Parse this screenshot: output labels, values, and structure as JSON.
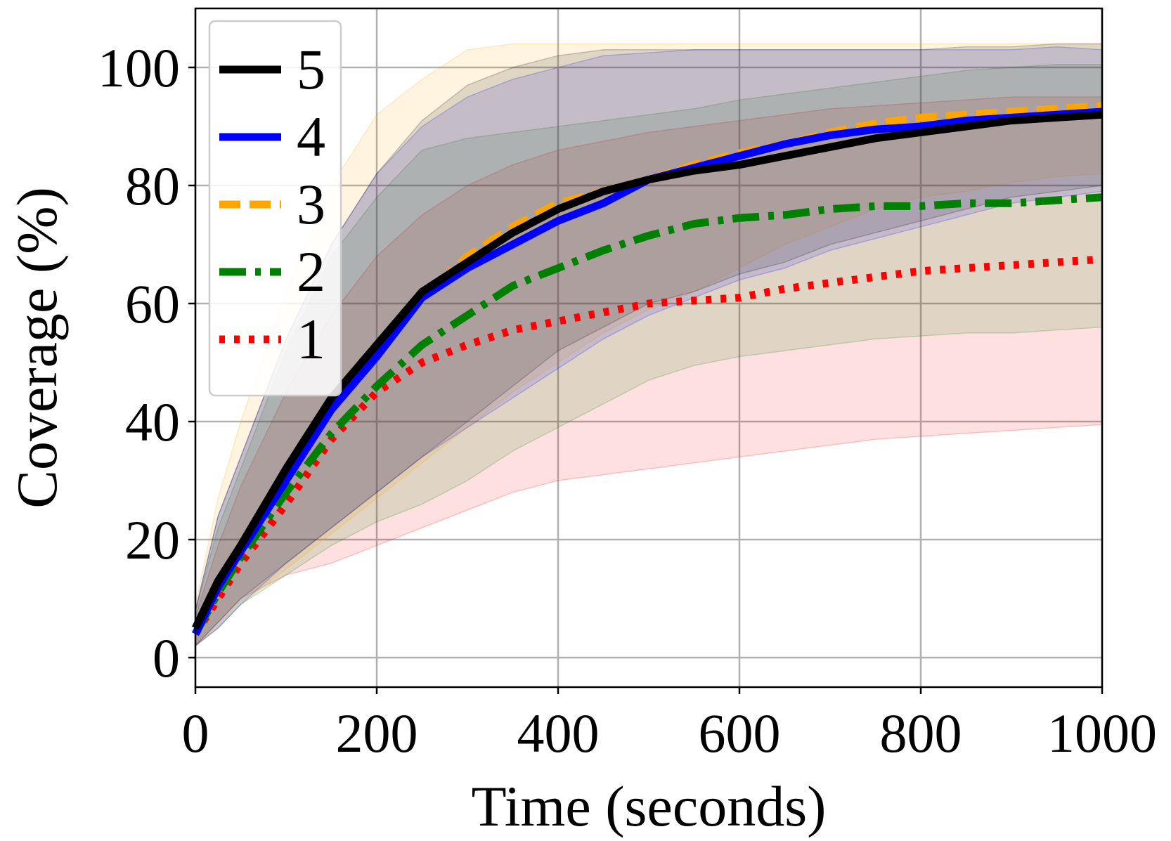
{
  "chart_data": {
    "type": "line",
    "title": "",
    "xlabel": "Time (seconds)",
    "ylabel": "Coverage (%)",
    "xlim": [
      0,
      1000
    ],
    "ylim": [
      -5,
      110
    ],
    "xticks": [
      "0",
      "200",
      "400",
      "600",
      "800",
      "1000"
    ],
    "yticks": [
      "0",
      "20",
      "40",
      "60",
      "80",
      "100"
    ],
    "grid": true,
    "legend_position": "top-left",
    "x": [
      0,
      25,
      50,
      100,
      150,
      200,
      250,
      300,
      350,
      400,
      450,
      500,
      550,
      600,
      650,
      700,
      750,
      800,
      850,
      900,
      950,
      1000
    ],
    "series": [
      {
        "name": "5",
        "color": "#000000",
        "style": "solid",
        "values": [
          5,
          13,
          19,
          32,
          44,
          53,
          62,
          67,
          72,
          76,
          79,
          81,
          82.5,
          83.5,
          85,
          86.5,
          88,
          89,
          90,
          91,
          91.5,
          92
        ],
        "band_upper": [
          8,
          24,
          34,
          54,
          70,
          82,
          91,
          97,
          100,
          102,
          103,
          103,
          103,
          103,
          103,
          103,
          103,
          103,
          103.5,
          103.5,
          104,
          104
        ],
        "band_lower": [
          2,
          6,
          10,
          16,
          22,
          28,
          34,
          40,
          46,
          52,
          56,
          60,
          62,
          65,
          67,
          70,
          72,
          74,
          76,
          78,
          79,
          80
        ]
      },
      {
        "name": "4",
        "color": "#0000ff",
        "style": "solid",
        "values": [
          4,
          12,
          18,
          30,
          42,
          51,
          61,
          66,
          70,
          74,
          77,
          81,
          83,
          85,
          87,
          88.5,
          89.5,
          90,
          91,
          91.5,
          92,
          92.5
        ],
        "band_upper": [
          8,
          24,
          34,
          54,
          70,
          82,
          90,
          95,
          98,
          100,
          102,
          102.5,
          103,
          103,
          103,
          103,
          103,
          103,
          103,
          103,
          103.5,
          103
        ],
        "band_lower": [
          2,
          5,
          9,
          16,
          22,
          28,
          34,
          39,
          44,
          49,
          54,
          58,
          61,
          64,
          66,
          69,
          71,
          73,
          75,
          77,
          78,
          79
        ]
      },
      {
        "name": "3",
        "color": "#ffa500",
        "style": "dashed",
        "values": [
          5,
          12,
          18,
          31,
          43,
          52,
          61,
          68,
          73,
          77,
          79,
          81,
          83.5,
          85.5,
          87,
          89,
          90.5,
          91.5,
          92,
          92.5,
          93,
          93.5
        ],
        "band_upper": [
          9,
          27,
          40,
          62,
          80,
          92,
          98,
          103,
          104,
          104,
          104,
          104,
          104,
          104,
          104,
          104,
          104,
          104,
          104,
          104,
          104,
          104
        ],
        "band_lower": [
          2,
          5,
          9,
          15,
          21,
          27,
          33,
          39,
          45,
          50,
          55,
          59,
          62,
          66,
          70,
          73,
          76,
          78,
          79,
          80.5,
          81.5,
          82
        ]
      },
      {
        "name": "2",
        "color": "#008000",
        "style": "dashdot",
        "values": [
          4,
          11,
          17,
          28,
          38,
          46,
          53,
          58,
          63,
          66,
          69,
          71.5,
          73.5,
          74.5,
          75,
          76,
          76.5,
          76.5,
          77,
          77,
          77.5,
          78
        ],
        "band_upper": [
          8,
          22,
          32,
          52,
          68,
          78,
          86,
          88,
          89,
          90,
          91,
          92,
          93,
          94.5,
          95.5,
          96.5,
          97.5,
          98.5,
          99.5,
          100,
          100.5,
          100.5
        ],
        "band_lower": [
          2,
          5,
          9,
          14,
          19,
          23,
          26,
          30,
          35,
          39,
          43,
          47,
          49.5,
          51,
          52,
          53,
          54,
          54.5,
          55,
          55,
          55.5,
          56
        ]
      },
      {
        "name": "1",
        "color": "#ff0000",
        "style": "dotted",
        "values": [
          4,
          10,
          16,
          26,
          37,
          45,
          50,
          53,
          55.5,
          57,
          58.5,
          60,
          60.5,
          61,
          62.5,
          63.5,
          64.5,
          65.5,
          66,
          66.5,
          67,
          67.5
        ],
        "band_upper": [
          7,
          19,
          29,
          45,
          58,
          68,
          75,
          80,
          83.5,
          86,
          87.5,
          89,
          90,
          91,
          92,
          93,
          93.5,
          94,
          94.5,
          95,
          95,
          95
        ],
        "band_lower": [
          2,
          6,
          10,
          14,
          16,
          19,
          22,
          25,
          28,
          30,
          31,
          32,
          33,
          34,
          35,
          36,
          37,
          37.5,
          38,
          38.5,
          39,
          39.5
        ]
      }
    ]
  }
}
